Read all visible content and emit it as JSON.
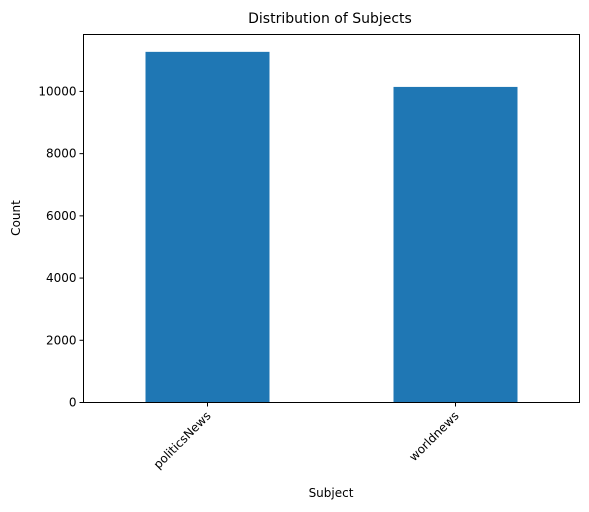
{
  "chart_data": {
    "type": "bar",
    "title": "Distribution of Subjects",
    "xlabel": "Subject",
    "ylabel": "Count",
    "categories": [
      "politicsNews",
      "worldnews"
    ],
    "values": [
      11272,
      10145
    ],
    "ylim": [
      0,
      11830
    ],
    "yticks": [
      0,
      2000,
      4000,
      6000,
      8000,
      10000
    ],
    "bar_color": "#1f77b4",
    "grid": false,
    "legend": false
  }
}
